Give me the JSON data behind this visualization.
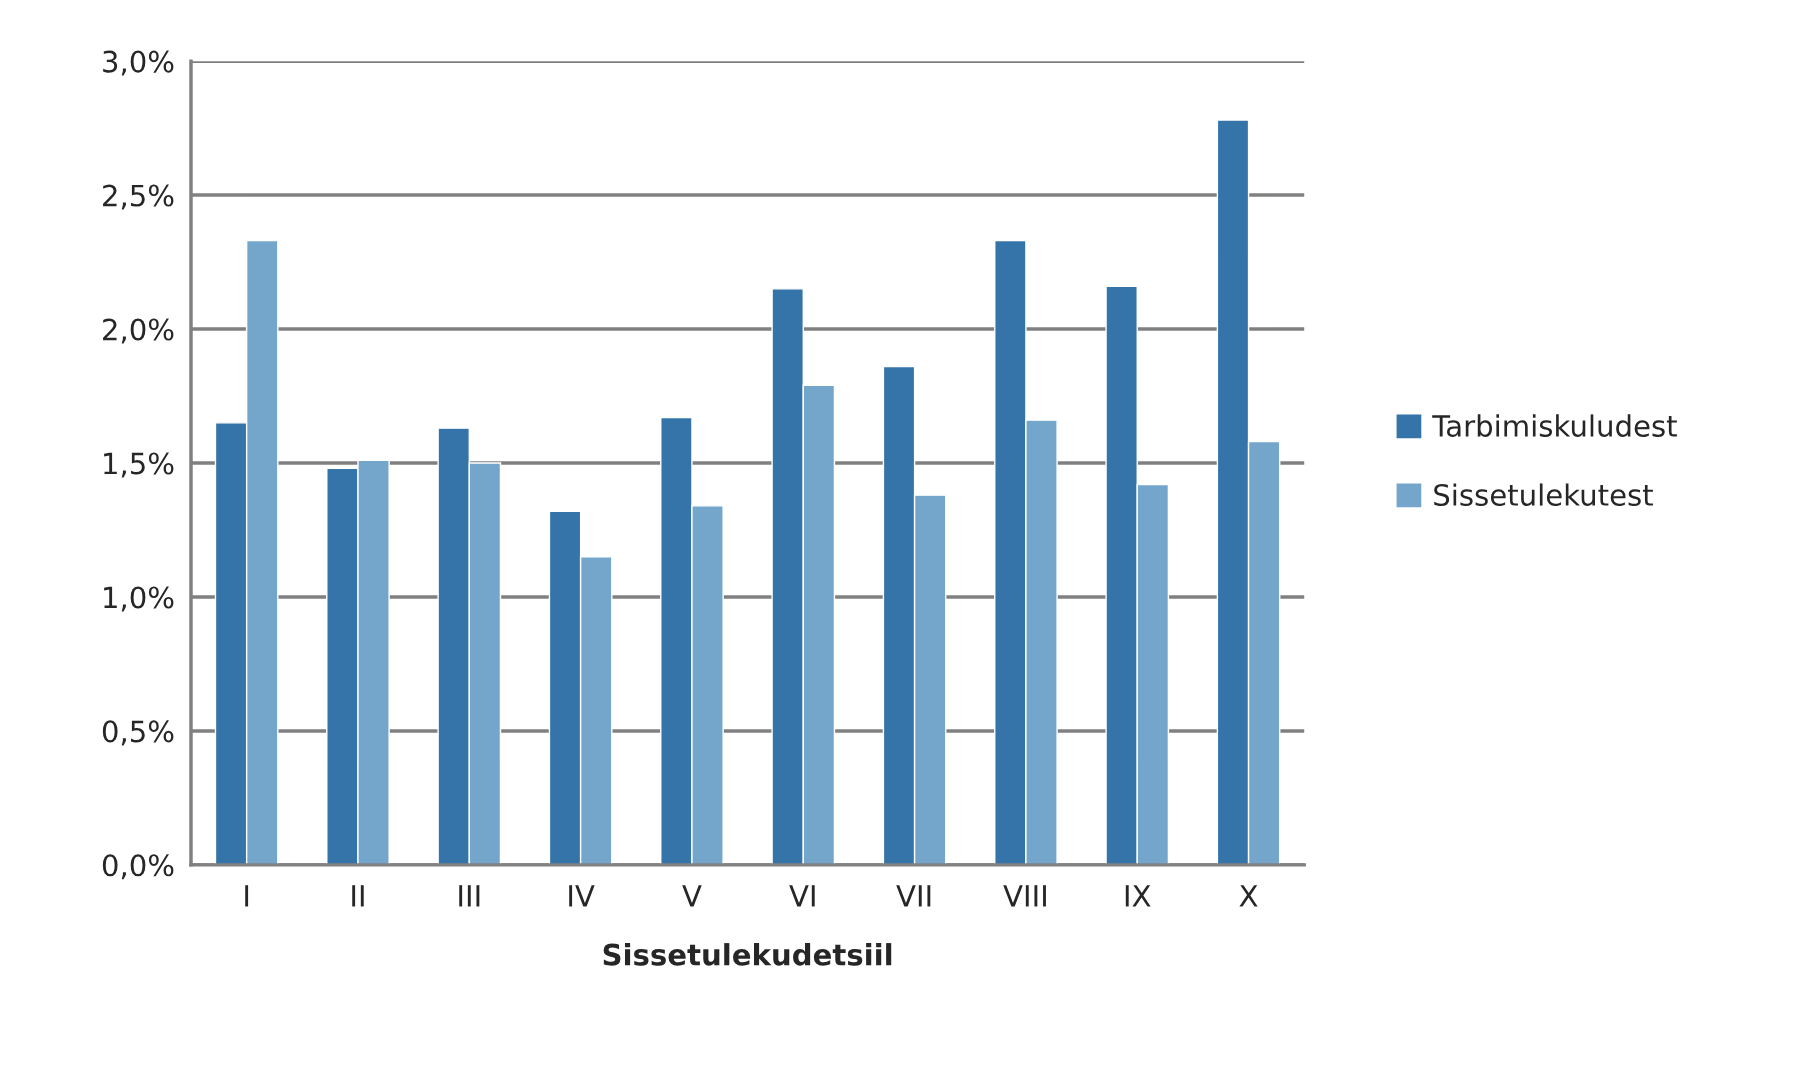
{
  "chart_data": {
    "type": "bar",
    "xlabel": "Sissetulekudetsiil",
    "categories": [
      "I",
      "II",
      "III",
      "IV",
      "V",
      "VI",
      "VII",
      "VIII",
      "IX",
      "X"
    ],
    "series": [
      {
        "name": "Tarbimiskuludest",
        "color": "#3574a8",
        "values": [
          1.65,
          1.48,
          1.63,
          1.32,
          1.67,
          2.15,
          1.86,
          2.33,
          2.16,
          2.78
        ]
      },
      {
        "name": "Sissetulekutest",
        "color": "#74a6cc",
        "values": [
          2.33,
          1.51,
          1.5,
          1.15,
          1.34,
          1.79,
          1.38,
          1.66,
          1.42,
          1.58
        ]
      }
    ],
    "ylim": [
      0,
      3.0
    ],
    "yticks": [
      {
        "value": 0,
        "label": "0,0%"
      },
      {
        "value": 0.5,
        "label": "0,5%"
      },
      {
        "value": 1.0,
        "label": "1,0%"
      },
      {
        "value": 1.5,
        "label": "1,5%"
      },
      {
        "value": 2.0,
        "label": "2,0%"
      },
      {
        "value": 2.5,
        "label": "2,5%"
      },
      {
        "value": 3.0,
        "label": "3,0%"
      }
    ],
    "grid": "y",
    "legend": "right"
  }
}
